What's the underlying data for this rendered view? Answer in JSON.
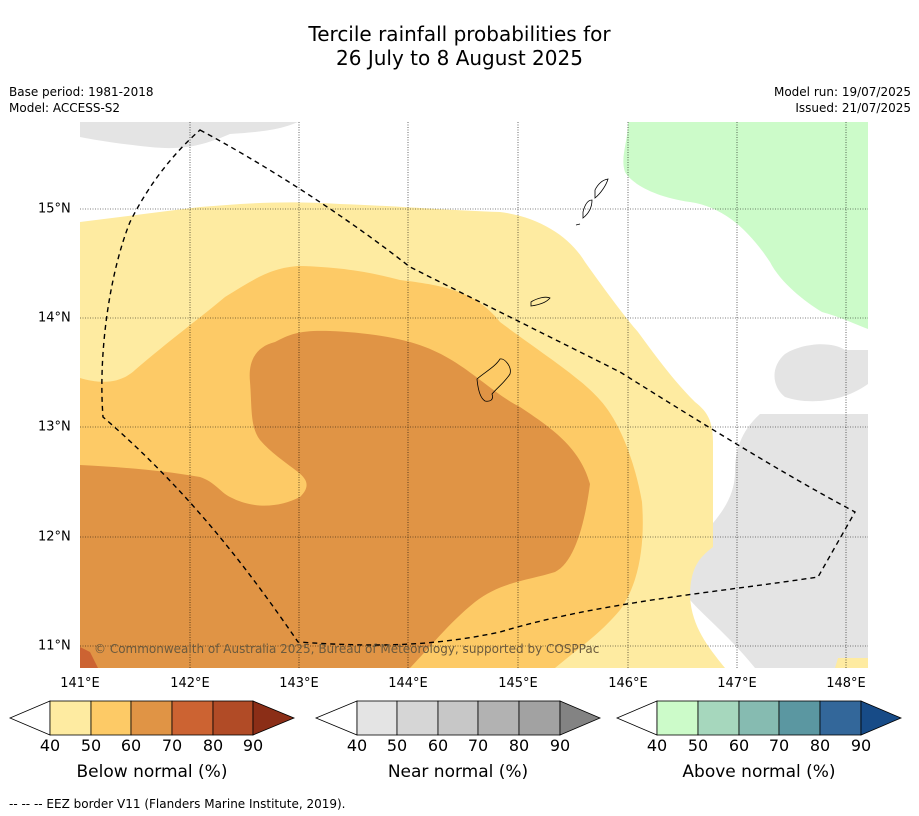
{
  "title": {
    "line1": "Tercile rainfall probabilities for",
    "line2": "26 July to 8 August 2025"
  },
  "meta_left": {
    "base_period": "Base period: 1981-2018",
    "model": "Model: ACCESS-S2"
  },
  "meta_right": {
    "model_run": "Model run: 19/07/2025",
    "issued": "Issued: 21/07/2025"
  },
  "map": {
    "copyright": "© Commonwealth of Australia 2025, Bureau of Meteorology, supported by COSPPac",
    "lon_labels": [
      "141°E",
      "142°E",
      "143°E",
      "144°E",
      "145°E",
      "146°E",
      "147°E",
      "148°E"
    ],
    "lat_labels": [
      "15°N",
      "14°N",
      "13°N",
      "12°N",
      "11°N"
    ],
    "border_style": "dashed black line",
    "land_style": "black outline"
  },
  "colorbars": [
    {
      "title": "Below normal (%)",
      "ticks": [
        "40",
        "50",
        "60",
        "70",
        "80",
        "90"
      ],
      "colors": [
        "#ffffff",
        "#feeba1",
        "#fdca66",
        "#e09445",
        "#cc6332",
        "#b14b26",
        "#8b2e17"
      ]
    },
    {
      "title": "Near normal (%)",
      "ticks": [
        "40",
        "50",
        "60",
        "70",
        "80",
        "90"
      ],
      "colors": [
        "#ffffff",
        "#e4e4e4",
        "#d6d6d6",
        "#c7c7c7",
        "#b2b2b2",
        "#a2a2a2",
        "#838383"
      ]
    },
    {
      "title": "Above normal (%)",
      "ticks": [
        "40",
        "50",
        "60",
        "70",
        "80",
        "90"
      ],
      "colors": [
        "#ffffff",
        "#ccfbc9",
        "#a6d7bd",
        "#86bbb1",
        "#5b97a1",
        "#33679a",
        "#174b87"
      ]
    }
  ],
  "footnote": "--  --  -- EEZ border V11 (Flanders Marine Institute, 2019).",
  "palette": {
    "below_40_50": "#feeba1",
    "below_50_60": "#fdca66",
    "below_60_70": "#e09445",
    "below_70_80": "#cc6332",
    "near_40_50": "#e4e4e4",
    "above_40_50": "#ccfbc9"
  }
}
